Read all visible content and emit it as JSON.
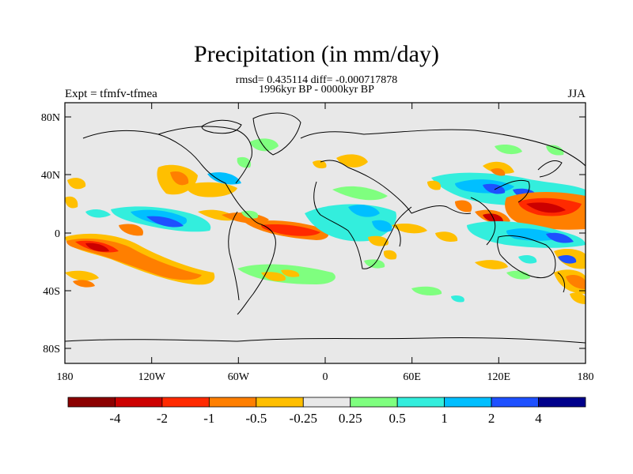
{
  "title": "Precipitation (in mm/day)",
  "stats": "rmsd= 0.435114 diff= -0.000717878",
  "period": "1996kyr BP - 0000kyr BP",
  "experiment": "Expt = tfmfv-tfmea",
  "season": "JJA",
  "axes": {
    "lat_ticks": [
      "80N",
      "40N",
      "0",
      "40S",
      "80S"
    ],
    "lon_ticks": [
      "180",
      "120W",
      "60W",
      "0",
      "60E",
      "120E",
      "180"
    ]
  },
  "legend": {
    "labels": [
      "-4",
      "-2",
      "-1",
      "-0.5",
      "-0.25",
      "0.25",
      "0.5",
      "1",
      "2",
      "4"
    ],
    "colors": [
      "#8b0000",
      "#cc0000",
      "#ff2a00",
      "#ff7f00",
      "#ffbf00",
      "#e8e8e8",
      "#7fff7f",
      "#33eedd",
      "#00bfff",
      "#1e50ff",
      "#00008b"
    ]
  }
}
